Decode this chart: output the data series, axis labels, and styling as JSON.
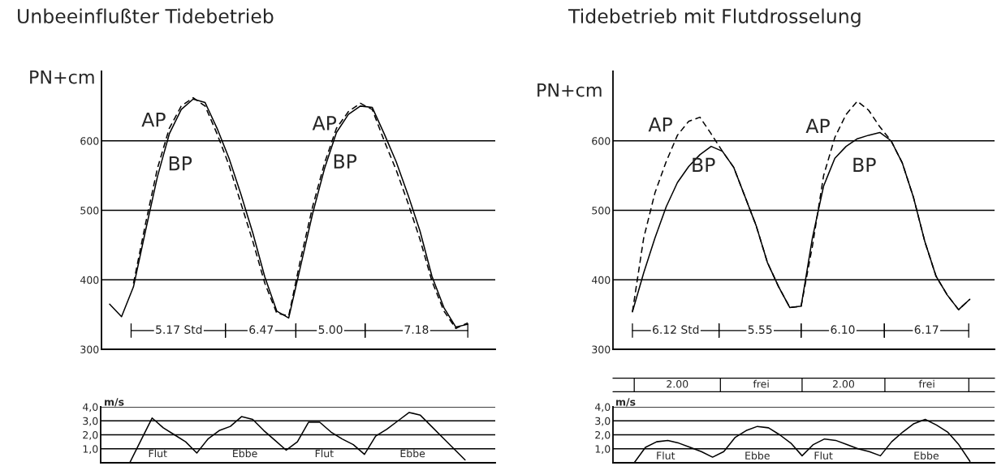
{
  "chart_data": [
    {
      "type": "line",
      "title": "Unbeeinflußter Tidebetrieb",
      "ylabel": "PN+cm",
      "categories": [
        null,
        null,
        null,
        null,
        null,
        null,
        null,
        null,
        null,
        null,
        null,
        null,
        null,
        null,
        null,
        null,
        null,
        null,
        null,
        null,
        null,
        null,
        null,
        null,
        null,
        null,
        null,
        null,
        null,
        null,
        null
      ],
      "series": [
        {
          "name": "AP",
          "color": "#000000",
          "line_style": "dashed",
          "values": [
            null,
            null,
            395,
            480,
            560,
            618,
            650,
            662,
            650,
            610,
            565,
            510,
            455,
            395,
            352,
            348,
            430,
            505,
            568,
            618,
            642,
            654,
            645,
            600,
            558,
            510,
            458,
            398,
            355,
            330,
            338
          ]
        },
        {
          "name": "BP",
          "color": "#000000",
          "line_style": "solid",
          "values": [
            365,
            347,
            390,
            470,
            548,
            610,
            645,
            660,
            655,
            618,
            575,
            523,
            467,
            404,
            355,
            345,
            420,
            495,
            560,
            612,
            638,
            650,
            648,
            610,
            570,
            522,
            470,
            405,
            360,
            332,
            336
          ]
        }
      ],
      "ylim": [
        300,
        700
      ],
      "yticks": [
        300,
        400,
        500,
        600
      ],
      "grid": "y",
      "tick_labels": "y",
      "annotations": [
        "5.17 Std",
        "6.47",
        "5.00",
        "7.18"
      ]
    },
    {
      "type": "line",
      "title": "Tidebetrieb mit Flutdrosselung",
      "ylabel": "PN+cm",
      "categories": [
        null,
        null,
        null,
        null,
        null,
        null,
        null,
        null,
        null,
        null,
        null,
        null,
        null,
        null,
        null,
        null,
        null,
        null,
        null,
        null,
        null,
        null,
        null,
        null,
        null,
        null,
        null,
        null,
        null,
        null,
        null
      ],
      "series": [
        {
          "name": "AP",
          "color": "#000000",
          "line_style": "dashed",
          "values": [
            354,
            460,
            525,
            570,
            608,
            628,
            634,
            610,
            585,
            562,
            520,
            478,
            425,
            390,
            360,
            362,
            448,
            550,
            605,
            638,
            657,
            644,
            620,
            600,
            568,
            518,
            455,
            405,
            378,
            357,
            372
          ]
        },
        {
          "name": "BP",
          "color": "#000000",
          "line_style": "solid",
          "values": [
            354,
            410,
            460,
            505,
            540,
            563,
            580,
            592,
            585,
            562,
            520,
            478,
            425,
            390,
            360,
            362,
            460,
            535,
            575,
            592,
            603,
            608,
            612,
            600,
            568,
            518,
            455,
            405,
            378,
            357,
            372
          ]
        }
      ],
      "ylim": [
        300,
        700
      ],
      "yticks": [
        300,
        400,
        500,
        600
      ],
      "grid": "y",
      "tick_labels": "y",
      "annotations": [
        "6.12 Std",
        "5.55",
        "6.10",
        "6.17"
      ]
    },
    {
      "type": "line",
      "ylabel": "m/s",
      "categories": [
        null,
        null,
        null,
        null,
        null,
        null,
        null,
        null,
        null,
        null,
        null,
        null,
        null,
        null,
        null,
        null,
        null,
        null,
        null,
        null,
        null,
        null,
        null,
        null,
        null,
        null,
        null,
        null,
        null,
        null,
        null
      ],
      "series": [
        {
          "color": "#000000",
          "line_style": "solid",
          "values": [
            0,
            1.6,
            3.2,
            2.5,
            2.0,
            1.5,
            0.7,
            1.7,
            2.3,
            2.6,
            3.3,
            3.1,
            2.3,
            1.6,
            0.9,
            1.5,
            2.9,
            2.9,
            2.2,
            1.7,
            1.3,
            0.6,
            1.9,
            2.4,
            3.0,
            3.6,
            3.4,
            2.6,
            1.8,
            1.0,
            0.2
          ]
        }
      ],
      "ylim": [
        0,
        4
      ],
      "yticks": [
        {
          "value": 1,
          "label": "1,0"
        },
        {
          "value": 2,
          "label": "2,0"
        },
        {
          "value": 3,
          "label": "3,0"
        },
        {
          "value": 4,
          "label": "4,0"
        }
      ],
      "grid": "y",
      "tick_labels": "y",
      "annotations": [
        "Flut",
        "Ebbe",
        "Flut",
        "Ebbe"
      ]
    },
    {
      "type": "line",
      "ylabel": "m/s",
      "categories": [
        null,
        null,
        null,
        null,
        null,
        null,
        null,
        null,
        null,
        null,
        null,
        null,
        null,
        null,
        null,
        null,
        null,
        null,
        null,
        null,
        null,
        null,
        null,
        null,
        null,
        null,
        null,
        null,
        null,
        null,
        null
      ],
      "series": [
        {
          "color": "#000000",
          "line_style": "solid",
          "values": [
            0,
            1.1,
            1.5,
            1.6,
            1.4,
            1.1,
            0.8,
            0.4,
            0.8,
            1.8,
            2.3,
            2.6,
            2.5,
            2.0,
            1.4,
            0.5,
            1.3,
            1.7,
            1.6,
            1.3,
            1.0,
            0.8,
            0.5,
            1.5,
            2.2,
            2.8,
            3.1,
            2.7,
            2.2,
            1.3,
            0.1
          ]
        }
      ],
      "ylim": [
        0,
        4
      ],
      "yticks": [
        {
          "value": 1,
          "label": "1,0"
        },
        {
          "value": 2,
          "label": "2,0"
        },
        {
          "value": 3,
          "label": "3,0"
        },
        {
          "value": 4,
          "label": "4,0"
        }
      ],
      "grid": "y",
      "tick_labels": "y",
      "annotations": [
        "Flut",
        "Ebbe",
        "Flut",
        "Ebbe",
        "2.00",
        "frei",
        "2.00",
        "frei"
      ]
    }
  ]
}
